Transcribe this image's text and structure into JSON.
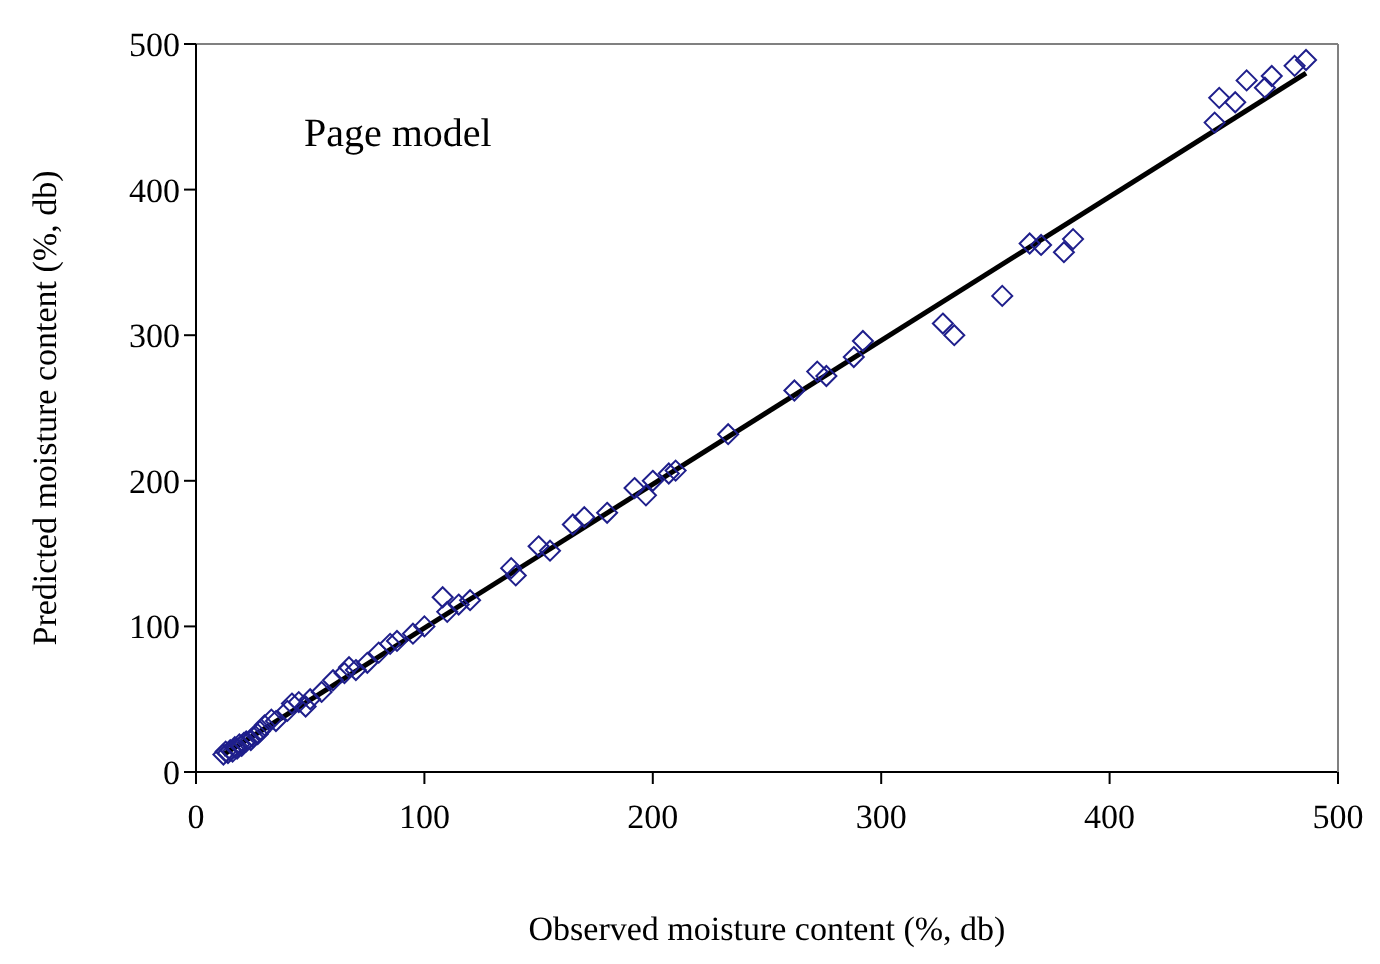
{
  "chart_data": {
    "type": "scatter",
    "xlabel": "Observed moisture content (%, db)",
    "ylabel": "Predicted moisture content (%, db)",
    "annotations": [
      "Page model"
    ],
    "xlim": [
      0,
      500
    ],
    "ylim": [
      0,
      500
    ],
    "xticks": [
      0,
      100,
      200,
      300,
      400,
      500
    ],
    "yticks": [
      0,
      100,
      200,
      300,
      400,
      500
    ],
    "series": [
      {
        "marker": "diamond",
        "color": "#1f1f8c",
        "x": [
          12,
          13,
          14,
          15,
          16,
          17,
          18,
          19,
          20,
          21,
          22,
          24,
          25,
          27,
          28,
          30,
          33,
          35,
          40,
          42,
          45,
          48,
          50,
          55,
          60,
          65,
          67,
          70,
          75,
          80,
          85,
          88,
          95,
          100,
          108,
          110,
          115,
          120,
          138,
          140,
          150,
          155,
          165,
          170,
          180,
          192,
          197,
          200,
          207,
          210,
          233,
          262,
          272,
          276,
          288,
          292,
          327,
          332,
          353,
          365,
          370,
          380,
          384,
          446,
          448,
          455,
          460,
          468,
          471,
          481,
          486
        ],
        "values": [
          12,
          14,
          13,
          15,
          14,
          17,
          16,
          19,
          18,
          20,
          21,
          22,
          24,
          26,
          28,
          32,
          36,
          35,
          42,
          47,
          48,
          45,
          50,
          55,
          63,
          68,
          72,
          70,
          75,
          82,
          88,
          90,
          95,
          100,
          120,
          110,
          115,
          118,
          140,
          135,
          155,
          152,
          170,
          175,
          178,
          195,
          190,
          200,
          205,
          207,
          232,
          262,
          275,
          272,
          285,
          296,
          308,
          300,
          327,
          363,
          362,
          357,
          366,
          446,
          463,
          460,
          475,
          470,
          478,
          485,
          489
        ]
      },
      {
        "type": "line",
        "color": "#000000",
        "marker": "none",
        "line_style": "solid",
        "x": [
          12,
          486
        ],
        "values": [
          12,
          480
        ]
      }
    ]
  }
}
